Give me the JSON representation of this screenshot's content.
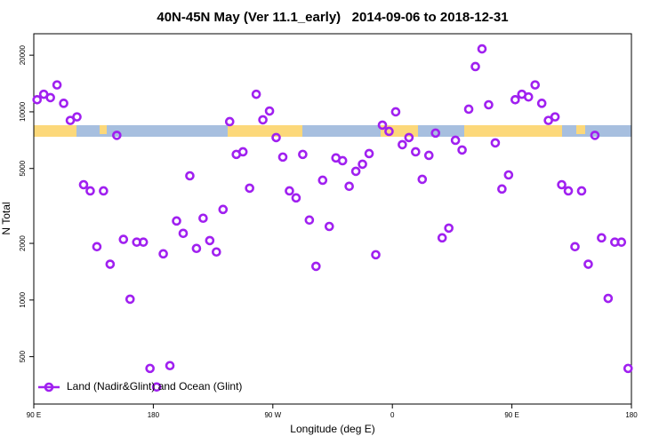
{
  "chart_data": {
    "type": "scatter",
    "title": "40N-45N May (Ver 11.1_early)   2014-09-06 to 2018-12-31",
    "x_label": "Longitude (deg E)",
    "y_label": "N Total",
    "log_y": true,
    "legend": "lower left",
    "xlim": [
      90,
      540
    ],
    "xticks": [
      {
        "value": 90,
        "label": "90 E"
      },
      180,
      {
        "value": 270,
        "label": "90 W"
      },
      0,
      {
        "value": 450,
        "label": "90 E"
      },
      {
        "value": 540,
        "label": "180"
      }
    ],
    "ylim": [
      280,
      26000
    ],
    "yticks": [
      500,
      1000,
      2000,
      5000,
      10000,
      20000
    ],
    "series": [
      {
        "name": "Land (Nadir&Glint) and Ocean (Glint)",
        "color": "#a020f0",
        "x": [
          92.5,
          97.5,
          102.5,
          107.5,
          112.5,
          117.5,
          122.5,
          127.5,
          132.5,
          137.5,
          142.5,
          147.5,
          152.5,
          157.5,
          162.5,
          167.5,
          172.5,
          177.5,
          182.5,
          187.5,
          192.5,
          197.5,
          202.5,
          207.5,
          212.5,
          217.5,
          222.5,
          227.5,
          232.5,
          237.5,
          242.5,
          247.5,
          252.5,
          257.5,
          262.5,
          267.5,
          272.5,
          277.5,
          282.5,
          287.5,
          292.5,
          297.5,
          302.5,
          307.5,
          312.5,
          317.5,
          322.5,
          327.5,
          332.5,
          337.5,
          342.5,
          347.5,
          352.5,
          357.5,
          362.5,
          367.5,
          372.5,
          377.5,
          382.5,
          387.5,
          392.5,
          397.5,
          402.5,
          407.5,
          412.5,
          417.5,
          422.5,
          427.5,
          432.5,
          437.5,
          442.5,
          447.5,
          452.5,
          457.5,
          462.5,
          467.5,
          472.5,
          477.5,
          482.5,
          487.5,
          492.5,
          497.5,
          502.5,
          507.5,
          512.5,
          517.5,
          522.5,
          527.5,
          532.5,
          537.5
        ],
        "values": [
          11600,
          12400,
          11900,
          13900,
          11100,
          9000,
          9400,
          4100,
          3800,
          1920,
          3800,
          1550,
          7500,
          2100,
          1010,
          2030,
          2030,
          433,
          345,
          1760,
          448,
          2630,
          2260,
          4570,
          1880,
          2720,
          2070,
          1800,
          3030,
          8870,
          5940,
          6130,
          3930,
          12400,
          9070,
          10100,
          7300,
          5750,
          3800,
          3490,
          5940,
          2660,
          1510,
          4330,
          2460,
          5690,
          5500,
          4020,
          4830,
          5270,
          6000,
          1740,
          8500,
          7870,
          10000,
          6690,
          7300,
          6130,
          4380,
          5870,
          7710,
          2140,
          2410,
          7060,
          6270,
          10330,
          17400,
          21600,
          10900,
          6840,
          3890,
          4620,
          11600,
          12400,
          12000,
          13900,
          11100,
          9000,
          9400,
          4100,
          3800,
          1920,
          3800,
          1550,
          7500,
          2140,
          1020,
          2030,
          2030,
          433
        ]
      }
    ]
  }
}
